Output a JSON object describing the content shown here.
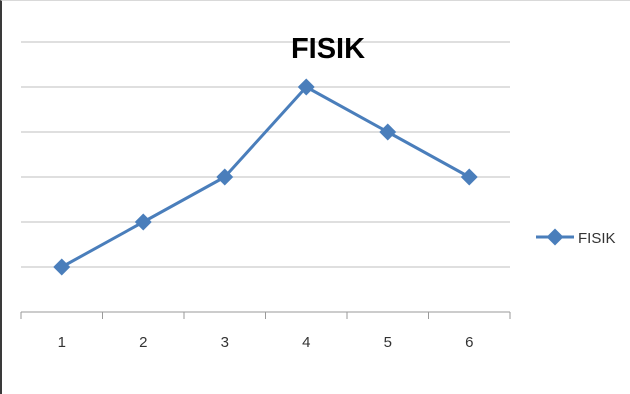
{
  "chart_data": {
    "type": "line",
    "title": "FISIK",
    "xlabel": "",
    "ylabel": "",
    "categories": [
      "1",
      "2",
      "3",
      "4",
      "5",
      "6"
    ],
    "series": [
      {
        "name": "FISIK",
        "values": [
          1,
          2,
          3,
          5,
          4,
          3
        ]
      }
    ],
    "ylim": [
      0,
      6
    ],
    "y_ticks_labeled": false,
    "grid": true,
    "legend": "right",
    "colors": {
      "series": "#4a7ebb",
      "grid": "#bfbfbf",
      "axis": "#9a9a9a"
    }
  }
}
